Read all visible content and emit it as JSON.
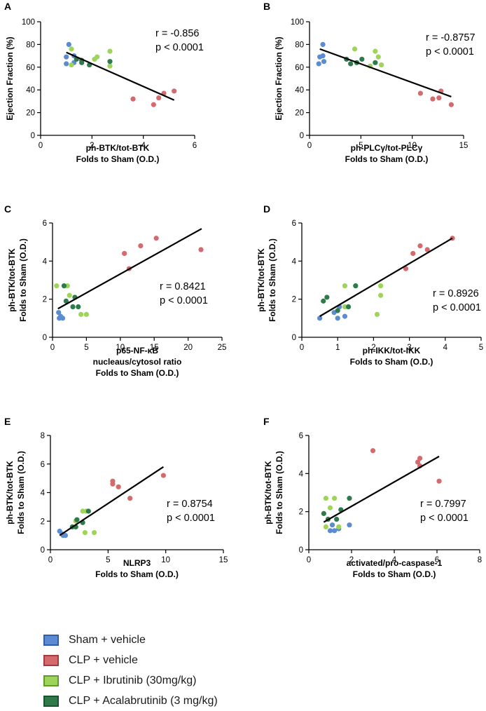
{
  "colors": {
    "sham": "#5b8bd0",
    "clp": "#d46a6e",
    "ibr": "#9fd45a",
    "aca": "#2f7a4b",
    "axis": "#000000",
    "fit": "#000000"
  },
  "legend": [
    {
      "key": "sham",
      "label": "Sham + vehicle",
      "fill": "#5b8bd0",
      "border": "#2e5fa8"
    },
    {
      "key": "clp",
      "label": "CLP + vehicle",
      "fill": "#d46a6e",
      "border": "#a83a3e"
    },
    {
      "key": "ibr",
      "label": "CLP + Ibrutinib (30mg/kg)",
      "fill": "#9fd45a",
      "border": "#5f9a2a"
    },
    {
      "key": "aca",
      "label": "CLP + Acalabrutinib (3 mg/kg)",
      "fill": "#2f7a4b",
      "border": "#1b5230"
    }
  ],
  "chart_data": [
    {
      "panel": "A",
      "type": "scatter",
      "xlabel": [
        "ph-BTK/tot-BTK",
        "Folds to Sham (O.D.)"
      ],
      "ylabel": [
        "Ejection Fraction (%)"
      ],
      "xlim": [
        0,
        6
      ],
      "ylim": [
        0,
        100
      ],
      "xticks": [
        0,
        2,
        4,
        6
      ],
      "yticks": [
        0,
        20,
        40,
        60,
        80,
        100
      ],
      "stats": [
        "r = -0.856",
        "p < 0.0001"
      ],
      "fit": [
        [
          1.0,
          73
        ],
        [
          5.2,
          31
        ]
      ],
      "series": [
        {
          "name": "Sham + vehicle",
          "key": "sham",
          "points": [
            [
              1.0,
              63
            ],
            [
              1.1,
              80
            ],
            [
              1.0,
              69
            ],
            [
              1.3,
              70
            ],
            [
              1.3,
              64
            ]
          ]
        },
        {
          "name": "CLP + vehicle",
          "key": "clp",
          "points": [
            [
              3.6,
              32
            ],
            [
              4.4,
              27
            ],
            [
              4.6,
              33
            ],
            [
              4.8,
              37
            ],
            [
              5.2,
              39
            ]
          ]
        },
        {
          "name": "CLP + Ibrutinib (30mg/kg)",
          "key": "ibr",
          "points": [
            [
              1.2,
              76
            ],
            [
              1.2,
              62
            ],
            [
              2.1,
              67
            ],
            [
              2.2,
              69
            ],
            [
              2.7,
              74
            ],
            [
              2.7,
              61
            ]
          ]
        },
        {
          "name": "CLP + Acalabrutinib (3 mg/kg)",
          "key": "aca",
          "points": [
            [
              1.4,
              67
            ],
            [
              1.6,
              64
            ],
            [
              1.6,
              66
            ],
            [
              1.9,
              62
            ],
            [
              2.7,
              65
            ]
          ]
        }
      ]
    },
    {
      "panel": "B",
      "type": "scatter",
      "xlabel": [
        "ph-PLCγ/tot-PLCγ",
        "Folds to Sham (O.D.)"
      ],
      "ylabel": [
        "Ejection Fraction (%)"
      ],
      "xlim": [
        0,
        15
      ],
      "ylim": [
        0,
        100
      ],
      "xticks": [
        0,
        5,
        10,
        15
      ],
      "yticks": [
        0,
        20,
        40,
        60,
        80,
        100
      ],
      "stats": [
        "r = -0.8757",
        "p < 0.0001"
      ],
      "fit": [
        [
          1.0,
          76
        ],
        [
          13.8,
          34
        ]
      ],
      "series": [
        {
          "name": "Sham + vehicle",
          "key": "sham",
          "points": [
            [
              0.9,
              63
            ],
            [
              1.0,
              69
            ],
            [
              1.3,
              70
            ],
            [
              1.4,
              65
            ],
            [
              1.3,
              80
            ]
          ]
        },
        {
          "name": "CLP + vehicle",
          "key": "clp",
          "points": [
            [
              10.8,
              37
            ],
            [
              12.0,
              32
            ],
            [
              12.6,
              33
            ],
            [
              12.8,
              39
            ],
            [
              13.8,
              27
            ]
          ]
        },
        {
          "name": "CLP + Ibrutinib (30mg/kg)",
          "key": "ibr",
          "points": [
            [
              4.4,
              76
            ],
            [
              6.4,
              74
            ],
            [
              6.7,
              69
            ],
            [
              7.0,
              62
            ],
            [
              5.9,
              61
            ]
          ]
        },
        {
          "name": "CLP + Acalabrutinib (3 mg/kg)",
          "key": "aca",
          "points": [
            [
              3.6,
              67
            ],
            [
              4.0,
              63
            ],
            [
              4.6,
              64
            ],
            [
              5.1,
              67
            ],
            [
              6.4,
              64
            ]
          ]
        }
      ]
    },
    {
      "panel": "C",
      "type": "scatter",
      "xlabel": [
        "p65-NF-κB",
        "nucleaus/cytosol ratio",
        "Folds to Sham (O.D.)"
      ],
      "ylabel": [
        "ph-BTK/tot-BTK",
        "Folds to Sham (O.D.)"
      ],
      "xlim": [
        0,
        25
      ],
      "ylim": [
        0,
        6
      ],
      "xticks": [
        0,
        5,
        10,
        15,
        20,
        25
      ],
      "yticks": [
        0,
        2,
        4,
        6
      ],
      "stats": [
        "r = 0.8421",
        "p < 0.0001"
      ],
      "fit": [
        [
          0.8,
          1.5
        ],
        [
          22,
          5.7
        ]
      ],
      "series": [
        {
          "name": "Sham + vehicle",
          "key": "sham",
          "points": [
            [
              0.9,
              1.3
            ],
            [
              1.0,
              1.0
            ],
            [
              1.2,
              1.1
            ],
            [
              1.5,
              1.0
            ]
          ]
        },
        {
          "name": "CLP + vehicle",
          "key": "clp",
          "points": [
            [
              10.6,
              4.4
            ],
            [
              11.3,
              3.6
            ],
            [
              13.0,
              4.8
            ],
            [
              15.3,
              5.2
            ],
            [
              21.9,
              4.6
            ]
          ]
        },
        {
          "name": "CLP + Ibrutinib (30mg/kg)",
          "key": "ibr",
          "points": [
            [
              0.6,
              2.7
            ],
            [
              2.2,
              2.7
            ],
            [
              2.5,
              2.2
            ],
            [
              4.2,
              1.2
            ],
            [
              5.0,
              1.2
            ]
          ]
        },
        {
          "name": "CLP + Acalabrutinib (3 mg/kg)",
          "key": "aca",
          "points": [
            [
              1.7,
              2.7
            ],
            [
              2.0,
              1.9
            ],
            [
              3.3,
              2.1
            ],
            [
              3.0,
              1.6
            ],
            [
              3.8,
              1.6
            ]
          ]
        }
      ]
    },
    {
      "panel": "D",
      "type": "scatter",
      "xlabel": [
        "ph-IKK/tot-IKK",
        "Folds to Sham (O.D.)"
      ],
      "ylabel": [
        "ph-BTK/tot-BTK",
        "Folds to Sham (O.D.)"
      ],
      "xlim": [
        0,
        5
      ],
      "ylim": [
        0,
        6
      ],
      "xticks": [
        0,
        1,
        2,
        3,
        4,
        5
      ],
      "yticks": [
        0,
        2,
        4,
        6
      ],
      "stats": [
        "r = 0.8926",
        "p < 0.0001"
      ],
      "fit": [
        [
          0.5,
          1.1
        ],
        [
          4.2,
          5.2
        ]
      ],
      "series": [
        {
          "name": "Sham + vehicle",
          "key": "sham",
          "points": [
            [
              0.5,
              1.0
            ],
            [
              0.9,
              1.3
            ],
            [
              1.0,
              1.0
            ],
            [
              1.2,
              1.1
            ],
            [
              1.05,
              1.6
            ]
          ]
        },
        {
          "name": "CLP + vehicle",
          "key": "clp",
          "points": [
            [
              2.9,
              3.6
            ],
            [
              3.1,
              4.4
            ],
            [
              3.3,
              4.8
            ],
            [
              3.5,
              4.6
            ],
            [
              4.2,
              5.2
            ]
          ]
        },
        {
          "name": "CLP + Ibrutinib (30mg/kg)",
          "key": "ibr",
          "points": [
            [
              1.2,
              2.7
            ],
            [
              2.2,
              2.7
            ],
            [
              2.2,
              2.2
            ],
            [
              2.1,
              1.2
            ],
            [
              1.2,
              1.6
            ]
          ]
        },
        {
          "name": "CLP + Acalabrutinib (3 mg/kg)",
          "key": "aca",
          "points": [
            [
              0.6,
              1.9
            ],
            [
              0.7,
              2.1
            ],
            [
              1.3,
              1.6
            ],
            [
              1.5,
              2.7
            ],
            [
              1.0,
              1.4
            ]
          ]
        }
      ]
    },
    {
      "panel": "E",
      "type": "scatter",
      "xlabel": [
        "NLRP3",
        "Folds to Sham (O.D.)"
      ],
      "ylabel": [
        "ph-BTK/tot-BTK",
        "Folds to Sham (O.D.)"
      ],
      "xlim": [
        0,
        15
      ],
      "ylim": [
        0,
        8
      ],
      "xticks": [
        0,
        5,
        10,
        15
      ],
      "yticks": [
        0,
        2,
        4,
        6,
        8
      ],
      "stats": [
        "r = 0.8754",
        "p < 0.0001"
      ],
      "fit": [
        [
          0.8,
          1.0
        ],
        [
          9.8,
          5.8
        ]
      ],
      "series": [
        {
          "name": "Sham + vehicle",
          "key": "sham",
          "points": [
            [
              0.8,
              1.3
            ],
            [
              1.0,
              1.1
            ],
            [
              1.1,
              1.0
            ],
            [
              1.3,
              1.0
            ]
          ]
        },
        {
          "name": "CLP + vehicle",
          "key": "clp",
          "points": [
            [
              5.4,
              4.6
            ],
            [
              5.4,
              4.8
            ],
            [
              5.9,
              4.4
            ],
            [
              6.9,
              3.6
            ],
            [
              9.8,
              5.2
            ]
          ]
        },
        {
          "name": "CLP + Ibrutinib (30mg/kg)",
          "key": "ibr",
          "points": [
            [
              2.8,
              2.7
            ],
            [
              3.1,
              2.7
            ],
            [
              3.0,
              1.2
            ],
            [
              3.8,
              1.2
            ],
            [
              2.2,
              2.0
            ]
          ]
        },
        {
          "name": "CLP + Acalabrutinib (3 mg/kg)",
          "key": "aca",
          "points": [
            [
              1.9,
              1.6
            ],
            [
              2.2,
              1.6
            ],
            [
              2.3,
              2.1
            ],
            [
              2.8,
              1.9
            ],
            [
              3.3,
              2.7
            ]
          ]
        }
      ]
    },
    {
      "panel": "F",
      "type": "scatter",
      "xlabel": [
        "activated/pro-caspase-1",
        "Folds to Sham (O.D.)"
      ],
      "ylabel": [
        "ph-BTK/tot-BTK",
        "Folds to Sham (O.D.)"
      ],
      "xlim": [
        0,
        8
      ],
      "ylim": [
        0,
        6
      ],
      "xticks": [
        0,
        2,
        4,
        6,
        8
      ],
      "yticks": [
        0,
        2,
        4,
        6
      ],
      "stats": [
        "r = 0.7997",
        "p < 0.0001"
      ],
      "fit": [
        [
          0.7,
          1.45
        ],
        [
          6.1,
          4.9
        ]
      ],
      "series": [
        {
          "name": "Sham + vehicle",
          "key": "sham",
          "points": [
            [
              1.0,
              1.0
            ],
            [
              1.2,
              1.0
            ],
            [
              1.1,
              1.3
            ],
            [
              1.4,
              1.1
            ],
            [
              1.9,
              1.3
            ]
          ]
        },
        {
          "name": "CLP + vehicle",
          "key": "clp",
          "points": [
            [
              3.0,
              5.2
            ],
            [
              5.1,
              4.6
            ],
            [
              5.2,
              4.8
            ],
            [
              5.2,
              4.4
            ],
            [
              6.1,
              3.6
            ]
          ]
        },
        {
          "name": "CLP + Ibrutinib (30mg/kg)",
          "key": "ibr",
          "points": [
            [
              0.8,
              2.7
            ],
            [
              1.2,
              2.7
            ],
            [
              1.0,
              2.2
            ],
            [
              0.8,
              1.2
            ],
            [
              1.4,
              1.2
            ]
          ]
        },
        {
          "name": "CLP + Acalabrutinib (3 mg/kg)",
          "key": "aca",
          "points": [
            [
              0.7,
              1.9
            ],
            [
              0.9,
              1.6
            ],
            [
              1.3,
              1.6
            ],
            [
              1.5,
              2.1
            ],
            [
              1.9,
              2.7
            ]
          ]
        }
      ]
    }
  ]
}
